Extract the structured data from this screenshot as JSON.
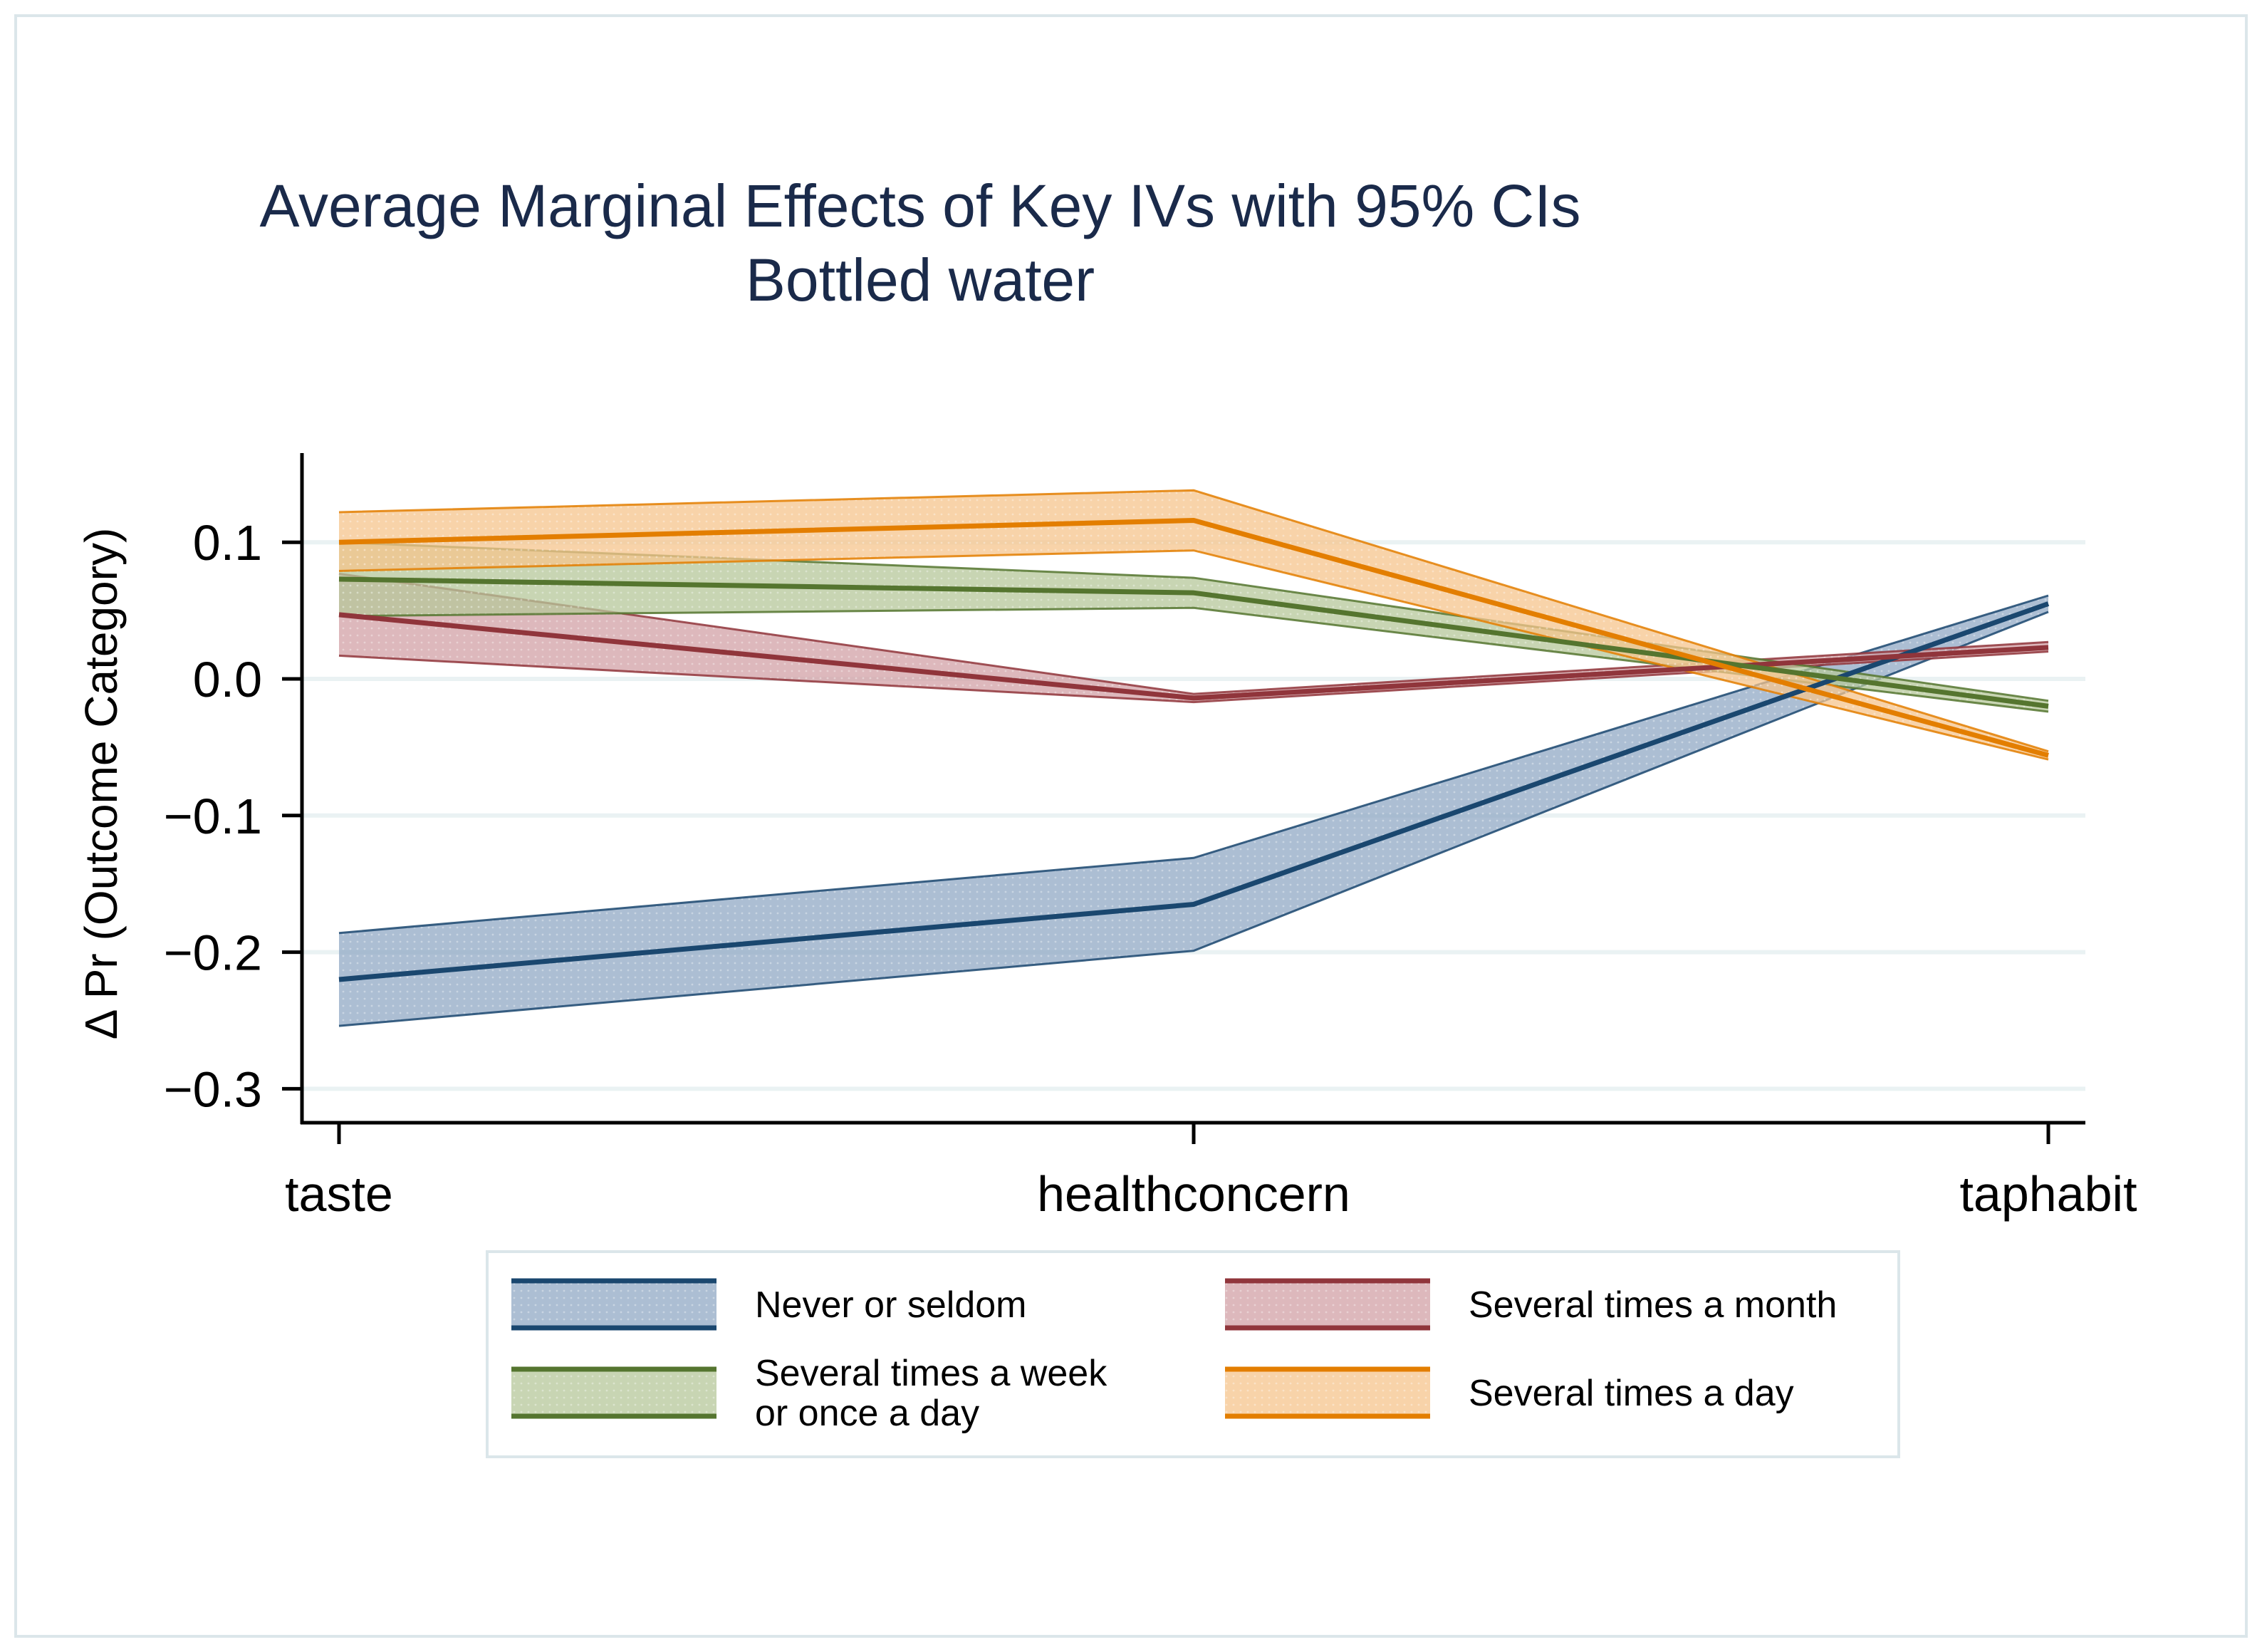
{
  "chart_data": {
    "type": "line",
    "title": "Average Marginal Effects of Key IVs with 95% CIs",
    "subtitle": "Bottled water",
    "xlabel": "",
    "ylabel": "Δ Pr (Outcome Category)",
    "categories": [
      "taste",
      "healthconcern",
      "taphabit"
    ],
    "yticks": [
      0.1,
      0.0,
      -0.1,
      -0.2,
      -0.3
    ],
    "ytick_labels": [
      "0.1",
      "0.0",
      "−0.1",
      "−0.2",
      "−0.3"
    ],
    "ylim": [
      -0.325,
      0.168
    ],
    "grid": true,
    "legend_position": "bottom",
    "series": [
      {
        "name": "Never or seldom",
        "values": [
          -0.22,
          -0.165,
          0.055
        ],
        "lower": [
          -0.254,
          -0.199,
          0.049
        ],
        "upper": [
          -0.186,
          -0.131,
          0.061
        ],
        "color": "#1a476f",
        "fill": "#90a8c4"
      },
      {
        "name": "Several times a month",
        "values": [
          0.047,
          -0.014,
          0.023
        ],
        "lower": [
          0.017,
          -0.017,
          0.02
        ],
        "upper": [
          0.077,
          -0.011,
          0.027
        ],
        "color": "#90353b",
        "fill": "#d2a0a6"
      },
      {
        "name": "Several times a week or once a day",
        "values": [
          0.073,
          0.063,
          -0.02
        ],
        "lower": [
          0.046,
          0.052,
          -0.024
        ],
        "upper": [
          0.1,
          0.074,
          -0.016
        ],
        "color": "#55752f",
        "fill": "#b5c79a"
      },
      {
        "name": "Several times a day",
        "values": [
          0.1,
          0.116,
          -0.056
        ],
        "lower": [
          0.079,
          0.094,
          -0.059
        ],
        "upper": [
          0.122,
          0.138,
          -0.053
        ],
        "color": "#e37e00",
        "fill": "#f5c48c"
      }
    ],
    "legend": [
      {
        "series": 0,
        "lines": [
          "Never or seldom"
        ]
      },
      {
        "series": 1,
        "lines": [
          "Several times a month"
        ]
      },
      {
        "series": 2,
        "lines": [
          "Several times a week",
          "or once a day"
        ]
      },
      {
        "series": 3,
        "lines": [
          "Several times a day"
        ]
      }
    ]
  }
}
